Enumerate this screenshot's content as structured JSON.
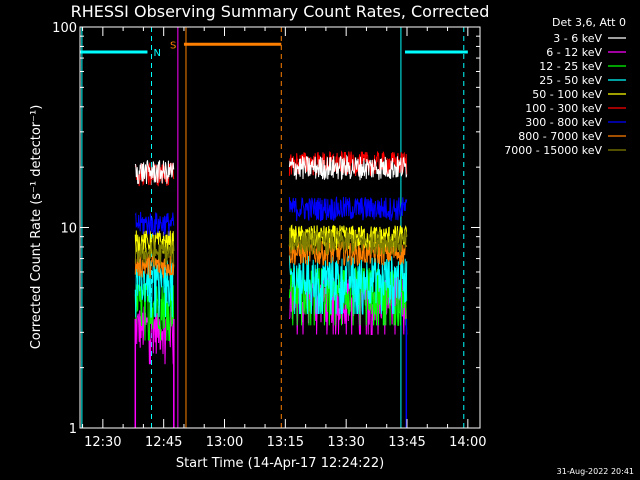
{
  "chart_data": {
    "type": "line",
    "title": "RHESSI Observing Summary Count Rates, Corrected",
    "xlabel": "Start Time (14-Apr-17 12:24:22)",
    "ylabel": "Corrected Count Rate (s⁻¹ detector⁻¹)",
    "yscale": "log",
    "ylim": [
      1,
      100
    ],
    "xlim": [
      "12:24:22",
      "14:03:00"
    ],
    "x_ticks": [
      "12:30",
      "12:45",
      "13:00",
      "13:15",
      "13:30",
      "13:45",
      "14:00"
    ],
    "y_ticks": [
      "1",
      "10",
      "100"
    ],
    "grid": false,
    "legend_placement": "right",
    "legend_title": "Det 3,6, Att 0",
    "timestamp": "31-Aug-2022 20:41",
    "segments_time": [
      [
        "12:39:00",
        "12:48:30"
      ],
      "13:15:00",
      [
        "13:37:00",
        "13:45:30"
      ]
    ],
    "series": [
      {
        "name": "3 - 6 keV",
        "color": "#ffffff",
        "segment1": 19.0,
        "segment2": 20.0
      },
      {
        "name": "6 - 12 keV",
        "color": "#ff00ff",
        "segment1": 3.2,
        "segment2": 4.5
      },
      {
        "name": "12 - 25 keV",
        "color": "#00ff00",
        "segment1": 4.2,
        "segment2": 5.0
      },
      {
        "name": "25 - 50 keV",
        "color": "#00ffff",
        "segment1": 5.5,
        "segment2": 5.7
      },
      {
        "name": "50 - 100 keV",
        "color": "#ffff00",
        "segment1": 8.5,
        "segment2": 9.0
      },
      {
        "name": "100 - 300 keV",
        "color": "#ff0000",
        "segment1": 18.5,
        "segment2": 21.0
      },
      {
        "name": "300 - 800 keV",
        "color": "#0000ff",
        "segment1": 10.5,
        "segment2": 12.5
      },
      {
        "name": "800 - 7000 keV",
        "color": "#ff8000",
        "segment1": 6.5,
        "segment2": 7.5
      },
      {
        "name": "7000 - 15000 keV",
        "color": "#808000",
        "segment1": 7.5,
        "segment2": 8.5
      }
    ],
    "annotations": {
      "night": {
        "label": "N",
        "color": "#00ffff",
        "intervals": [
          [
            "12:24:22",
            "12:41:00"
          ],
          [
            "13:44:30",
            "14:00:00"
          ]
        ],
        "level": 75
      },
      "saa": {
        "label": "S",
        "color": "#ff8000",
        "intervals": [
          [
            "12:50:00",
            "13:14:00"
          ]
        ],
        "level": 82
      }
    }
  }
}
